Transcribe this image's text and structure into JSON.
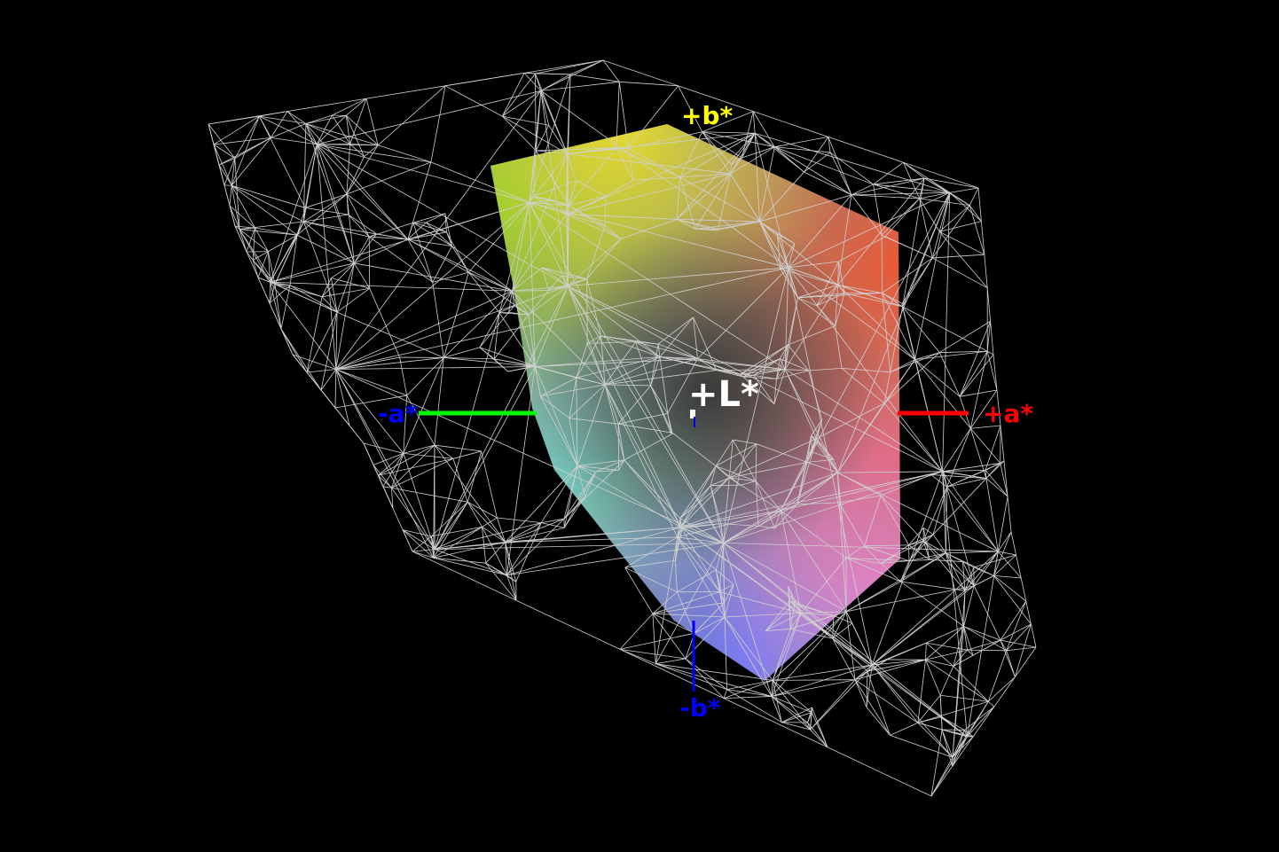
{
  "axes": {
    "plus_l": {
      "label": "+L*",
      "color": "#ffffff"
    },
    "plus_a": {
      "label": "+a*",
      "color": "#ff0000"
    },
    "minus_a": {
      "label": "-a*",
      "color": "#0000ff",
      "line_color": "#00ff00"
    },
    "plus_b": {
      "label": "+b*",
      "color": "#ffff00"
    },
    "minus_b": {
      "label": "-b*",
      "color": "#0000ff"
    }
  },
  "colors": {
    "background": "#000000",
    "wireframe": "#d0d0d0",
    "gamut_green": "#7ccc2a",
    "gamut_yellow": "#e0d030",
    "gamut_red": "#e06040",
    "gamut_magenta": "#e088d8",
    "gamut_blue": "#7080f0",
    "gamut_cyan": "#70c8c0"
  }
}
